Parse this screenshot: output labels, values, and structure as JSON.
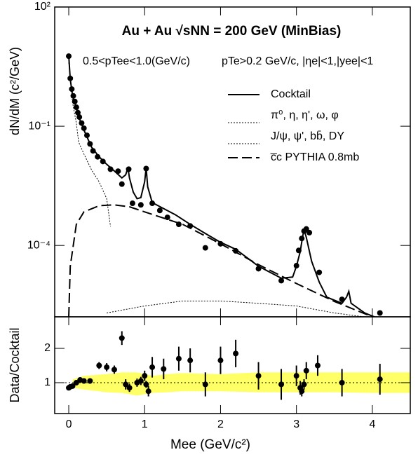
{
  "chart_data": [
    {
      "type": "scatter",
      "title": "Au + Au √sNN = 200 GeV (MinBias)",
      "annotations": [
        "0.5<pTee<1.0(GeV/c)",
        "pTe>0.2 GeV/c, |ηe|<1,|yee|<1"
      ],
      "ylabel": "dN/dM (c²/GeV)",
      "yscale": "log",
      "xlim": [
        -0.185,
        4.5
      ],
      "ylim": [
        1.6e-06,
        100
      ],
      "xticks": [
        0,
        1,
        2,
        3,
        4
      ],
      "yticks": [
        {
          "value": 100,
          "label": "10²"
        },
        {
          "value": 0.1,
          "label": "10⁻¹"
        },
        {
          "value": 0.0001,
          "label": "10⁻⁴"
        }
      ],
      "data": {
        "color": "#000000",
        "x": [
          0.0,
          0.02,
          0.04,
          0.06,
          0.08,
          0.1,
          0.12,
          0.14,
          0.17,
          0.2,
          0.24,
          0.28,
          0.32,
          0.38,
          0.45,
          0.55,
          0.65,
          0.7,
          0.79,
          0.84,
          0.95,
          1.02,
          1.1,
          1.2,
          1.3,
          1.45,
          1.6,
          1.8,
          2.0,
          2.2,
          2.5,
          2.8,
          3.0,
          3.03,
          3.07,
          3.1,
          3.13,
          3.17,
          3.3,
          3.6,
          4.1
        ],
        "values": [
          5.8,
          1.6,
          0.86,
          0.58,
          0.42,
          0.3,
          0.22,
          0.17,
          0.12,
          0.089,
          0.059,
          0.036,
          0.024,
          0.017,
          0.013,
          0.0083,
          0.0074,
          0.0035,
          0.0083,
          0.00115,
          0.00105,
          0.0086,
          0.00115,
          0.00076,
          0.00051,
          0.00034,
          0.00031,
          8.7e-05,
          0.00011,
          7.3e-05,
          2.6e-05,
          1.3e-05,
          3.1e-05,
          7.5e-05,
          0.00015,
          0.00023,
          0.00026,
          0.00021,
          2.1e-05,
          4.4e-06,
          2e-06
        ]
      },
      "series": [
        {
          "name": "Cocktail",
          "color": "#000000",
          "style": "solid",
          "x": [
            0.0,
            0.02,
            0.05,
            0.1,
            0.15,
            0.2,
            0.3,
            0.4,
            0.5,
            0.6,
            0.7,
            0.75,
            0.78,
            0.8,
            0.85,
            0.9,
            0.95,
            1.0,
            1.02,
            1.04,
            1.1,
            1.2,
            1.4,
            1.6,
            1.8,
            2.0,
            2.2,
            2.5,
            2.8,
            2.95,
            3.0,
            3.05,
            3.08,
            3.1,
            3.13,
            3.2,
            3.3,
            3.4,
            3.6,
            3.66,
            3.69,
            3.72,
            3.9,
            4.1,
            4.3
          ],
          "values": [
            6,
            1.5,
            0.6,
            0.28,
            0.14,
            0.08,
            0.03,
            0.017,
            0.011,
            0.0075,
            0.005,
            0.006,
            0.009,
            0.005,
            0.0022,
            0.0015,
            0.0016,
            0.004,
            0.009,
            0.003,
            0.0012,
            0.00095,
            0.0006,
            0.00034,
            0.0002,
            0.00012,
            8e-05,
            3e-05,
            1.5e-05,
            1.6e-05,
            3e-05,
            7e-05,
            0.00016,
            0.00025,
            0.00016,
            4e-05,
            1.2e-05,
            5e-06,
            3.5e-06,
            5e-06,
            7e-06,
            3.5e-06,
            2e-06,
            1.4e-06,
            1e-06
          ]
        },
        {
          "name": "π⁰, η, η', ω, φ",
          "color": "#000000",
          "style": "dotted",
          "x": [
            0.0,
            0.05,
            0.1,
            0.13,
            0.2,
            0.3,
            0.4,
            0.5,
            0.55
          ],
          "values": [
            4,
            0.4,
            0.12,
            0.04,
            0.02,
            0.008,
            0.004,
            0.0015,
            0.0003
          ]
        },
        {
          "name": "J/ψ, ψ', bb̄, DY",
          "color": "#000000",
          "style": "dotted",
          "x": [
            0.5,
            1.0,
            1.5,
            2.0,
            2.5,
            3.0,
            3.5,
            4.0
          ],
          "values": [
            2e-06,
            3e-06,
            4e-06,
            4e-06,
            3.5e-06,
            3e-06,
            2e-06,
            1.5e-06
          ]
        },
        {
          "name": "c̅c PYTHIA 0.8mb",
          "color": "#000000",
          "style": "dashed",
          "x": [
            0.0,
            0.02,
            0.1,
            0.2,
            0.4,
            0.6,
            0.8,
            1.0,
            1.5,
            2.0,
            2.5,
            3.0,
            3.5,
            4.0
          ],
          "values": [
            1.6e-06,
            3e-05,
            0.00034,
            0.0007,
            0.001,
            0.00105,
            0.00094,
            0.0007,
            0.00034,
            0.00011,
            3.3e-05,
            1.1e-05,
            3.9e-06,
            1.6e-06
          ]
        }
      ]
    },
    {
      "type": "ratio",
      "ylabel": "Data/Cocktail",
      "xlabel": "Mee (GeV/c²)",
      "xlim": [
        -0.185,
        4.5
      ],
      "ylim": [
        0.1,
        2.92
      ],
      "xticks": [
        0,
        1,
        2,
        3,
        4
      ],
      "yticks": [
        1,
        2
      ],
      "reference_line": 1,
      "band": {
        "color": "#ffff66",
        "x": [
          0.05,
          0.2,
          0.5,
          0.7,
          0.9,
          1.1,
          1.3,
          1.5,
          2.0,
          2.5,
          3.0,
          3.5,
          4.0,
          4.5
        ],
        "lower": [
          0.85,
          0.8,
          0.72,
          0.7,
          0.62,
          0.7,
          0.72,
          0.75,
          0.75,
          0.72,
          0.72,
          0.72,
          0.7,
          0.7
        ],
        "upper": [
          1.1,
          1.2,
          1.25,
          1.3,
          1.3,
          1.2,
          1.25,
          1.28,
          1.25,
          1.3,
          1.3,
          1.3,
          1.3,
          1.3
        ]
      },
      "data": {
        "color": "#000000",
        "x": [
          0.0,
          0.02,
          0.05,
          0.1,
          0.15,
          0.2,
          0.28,
          0.4,
          0.5,
          0.6,
          0.7,
          0.75,
          0.8,
          0.9,
          0.95,
          1.0,
          1.02,
          1.05,
          1.1,
          1.25,
          1.45,
          1.6,
          1.8,
          2.0,
          2.2,
          2.5,
          2.8,
          3.0,
          3.05,
          3.07,
          3.1,
          3.13,
          3.28,
          3.6,
          4.1
        ],
        "values": [
          0.85,
          0.88,
          0.9,
          1.0,
          1.08,
          1.05,
          1.05,
          1.5,
          1.45,
          1.38,
          2.3,
          0.95,
          0.85,
          1.0,
          1.05,
          1.2,
          0.95,
          0.75,
          1.45,
          1.4,
          1.7,
          1.65,
          0.95,
          1.65,
          1.85,
          1.2,
          0.95,
          1.2,
          0.85,
          0.75,
          0.95,
          1.35,
          1.5,
          1.0,
          1.1
        ],
        "errors": [
          0.05,
          0.05,
          0.05,
          0.06,
          0.06,
          0.07,
          0.08,
          0.1,
          0.12,
          0.12,
          0.2,
          0.15,
          0.12,
          0.12,
          0.12,
          0.15,
          0.1,
          0.15,
          0.3,
          0.3,
          0.35,
          0.35,
          0.35,
          0.4,
          0.4,
          0.4,
          0.45,
          0.3,
          0.2,
          0.15,
          0.15,
          0.25,
          0.3,
          0.4,
          0.45
        ]
      }
    }
  ]
}
